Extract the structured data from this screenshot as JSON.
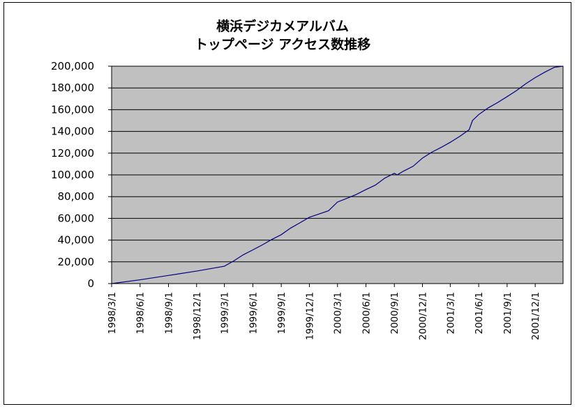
{
  "colors": {
    "plot_background": "#c0c0c0",
    "gridline": "#000000",
    "series_line": "#000080",
    "frame": "#000000"
  },
  "chart_data": {
    "type": "line",
    "title_lines": [
      "横浜デジカメアルバム",
      "トップページ アクセス数推移"
    ],
    "xlabel": "",
    "ylabel": "",
    "ylim": [
      0,
      200000
    ],
    "yticks": [
      0,
      20000,
      40000,
      60000,
      80000,
      100000,
      120000,
      140000,
      160000,
      180000,
      200000
    ],
    "ytick_labels": [
      "0",
      "20,000",
      "40,000",
      "60,000",
      "80,000",
      "100,000",
      "120,000",
      "140,000",
      "160,000",
      "180,000",
      "200,000"
    ],
    "xlim": [
      "1998-03-01",
      "2002-03-01"
    ],
    "xtick_dates": [
      "1998-03-01",
      "1998-06-01",
      "1998-09-01",
      "1998-12-01",
      "1999-03-01",
      "1999-06-01",
      "1999-09-01",
      "1999-12-01",
      "2000-03-01",
      "2000-06-01",
      "2000-09-01",
      "2000-12-01",
      "2001-03-01",
      "2001-06-01",
      "2001-09-01",
      "2001-12-01"
    ],
    "xtick_labels": [
      "1998/3/1",
      "1998/6/1",
      "1998/9/1",
      "1998/12/1",
      "1999/3/1",
      "1999/6/1",
      "1999/9/1",
      "1999/12/1",
      "2000/3/1",
      "2000/6/1",
      "2000/9/1",
      "2000/12/1",
      "2001/3/1",
      "2001/6/1",
      "2001/9/1",
      "2001/12/1"
    ],
    "grid": true,
    "legend": "none",
    "series": [
      {
        "x": [
          "1998-03-01",
          "1998-06-01",
          "1998-09-01",
          "1998-12-01",
          "1999-03-01",
          "1999-04-01",
          "1999-05-01",
          "1999-06-01",
          "1999-07-01",
          "1999-08-01",
          "1999-09-01",
          "1999-10-01",
          "1999-11-01",
          "1999-12-01",
          "2000-01-01",
          "2000-02-01",
          "2000-03-01",
          "2000-04-01",
          "2000-05-01",
          "2000-06-01",
          "2000-07-01",
          "2000-08-01",
          "2000-09-01",
          "2000-09-10",
          "2000-10-01",
          "2000-11-01",
          "2000-12-01",
          "2001-01-01",
          "2001-02-01",
          "2001-03-01",
          "2001-04-01",
          "2001-05-01",
          "2001-05-12",
          "2001-06-01",
          "2001-07-01",
          "2001-08-01",
          "2001-09-01",
          "2001-10-01",
          "2001-11-01",
          "2001-12-01",
          "2002-01-01",
          "2002-02-01",
          "2002-03-01"
        ],
        "values": [
          0,
          3500,
          7500,
          11500,
          16000,
          21000,
          26500,
          31000,
          35500,
          40500,
          45000,
          51000,
          56000,
          61000,
          64000,
          67000,
          75000,
          78500,
          82000,
          86500,
          90500,
          97000,
          101500,
          100000,
          103500,
          108000,
          115500,
          121000,
          125500,
          130000,
          135500,
          141500,
          150000,
          155500,
          161500,
          166500,
          172000,
          177500,
          184000,
          189500,
          194500,
          199000,
          200000
        ]
      }
    ]
  }
}
